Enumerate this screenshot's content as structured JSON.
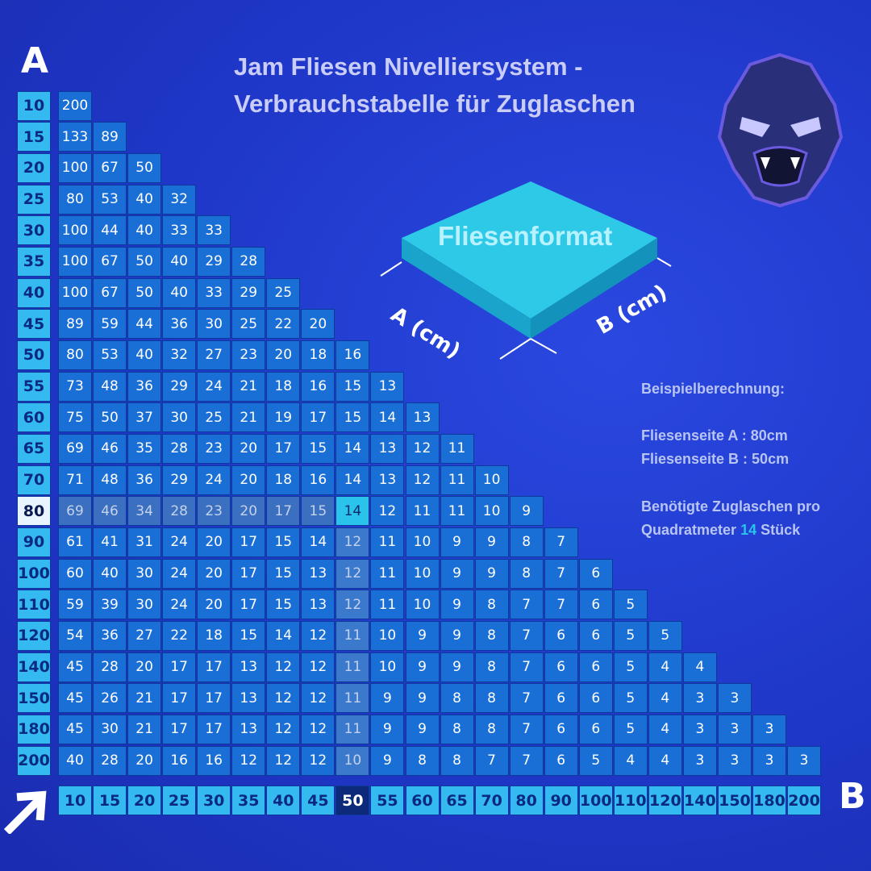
{
  "title": {
    "line1": "Jam Fliesen Nivelliersystem -",
    "line2": "Verbrauchstabelle für Zuglaschen"
  },
  "axis": {
    "a_label": "A",
    "b_label": "B"
  },
  "diagram": {
    "label": "Fliesenformat",
    "side_a": "A (cm)",
    "side_b": "B (cm)"
  },
  "example": {
    "heading": "Beispielberechnung:",
    "side_a": "Fliesenseite A : 80cm",
    "side_b": "Fliesenseite B : 50cm",
    "result_prefix": "Benötigte Zuglaschen pro",
    "result_line2_prefix": "Quadratmeter",
    "result_value": "14",
    "result_suffix": "Stück"
  },
  "colors": {
    "background": "#1f37c8",
    "cell": "#1a6fd6",
    "header": "#34b9f0",
    "highlight": "#29c3ec"
  },
  "icons": {
    "logo": "gorilla-head-logo",
    "corner": "arrow-up-right-icon"
  },
  "selected": {
    "a": "80",
    "b": "50"
  },
  "table": {
    "rows_a": [
      "10",
      "15",
      "20",
      "25",
      "30",
      "35",
      "40",
      "45",
      "50",
      "55",
      "60",
      "65",
      "70",
      "80",
      "90",
      "100",
      "110",
      "120",
      "140",
      "150",
      "180",
      "200"
    ],
    "cols_b": [
      "10",
      "15",
      "20",
      "25",
      "30",
      "35",
      "40",
      "45",
      "50",
      "55",
      "60",
      "65",
      "70",
      "80",
      "90",
      "100",
      "110",
      "120",
      "140",
      "150",
      "180",
      "200"
    ],
    "values": [
      [
        "200"
      ],
      [
        "133",
        "89"
      ],
      [
        "100",
        "67",
        "50"
      ],
      [
        "80",
        "53",
        "40",
        "32"
      ],
      [
        "100",
        "44",
        "40",
        "33",
        "33"
      ],
      [
        "100",
        "67",
        "50",
        "40",
        "29",
        "28"
      ],
      [
        "100",
        "67",
        "50",
        "40",
        "33",
        "29",
        "25"
      ],
      [
        "89",
        "59",
        "44",
        "36",
        "30",
        "25",
        "22",
        "20"
      ],
      [
        "80",
        "53",
        "40",
        "32",
        "27",
        "23",
        "20",
        "18",
        "16"
      ],
      [
        "73",
        "48",
        "36",
        "29",
        "24",
        "21",
        "18",
        "16",
        "15",
        "13"
      ],
      [
        "75",
        "50",
        "37",
        "30",
        "25",
        "21",
        "19",
        "17",
        "15",
        "14",
        "13"
      ],
      [
        "69",
        "46",
        "35",
        "28",
        "23",
        "20",
        "17",
        "15",
        "14",
        "13",
        "12",
        "11"
      ],
      [
        "71",
        "48",
        "36",
        "29",
        "24",
        "20",
        "18",
        "16",
        "14",
        "13",
        "12",
        "11",
        "10"
      ],
      [
        "69",
        "46",
        "34",
        "28",
        "23",
        "20",
        "17",
        "15",
        "14",
        "12",
        "11",
        "11",
        "10",
        "9"
      ],
      [
        "61",
        "41",
        "31",
        "24",
        "20",
        "17",
        "15",
        "14",
        "12",
        "11",
        "10",
        "9",
        "9",
        "8",
        "7"
      ],
      [
        "60",
        "40",
        "30",
        "24",
        "20",
        "17",
        "15",
        "13",
        "12",
        "11",
        "10",
        "9",
        "9",
        "8",
        "7",
        "6"
      ],
      [
        "59",
        "39",
        "30",
        "24",
        "20",
        "17",
        "15",
        "13",
        "12",
        "11",
        "10",
        "9",
        "8",
        "7",
        "7",
        "6",
        "5"
      ],
      [
        "54",
        "36",
        "27",
        "22",
        "18",
        "15",
        "14",
        "12",
        "11",
        "10",
        "9",
        "9",
        "8",
        "7",
        "6",
        "6",
        "5",
        "5"
      ],
      [
        "45",
        "28",
        "20",
        "17",
        "17",
        "13",
        "12",
        "12",
        "11",
        "10",
        "9",
        "9",
        "8",
        "7",
        "6",
        "6",
        "5",
        "4",
        "4"
      ],
      [
        "45",
        "26",
        "21",
        "17",
        "17",
        "13",
        "12",
        "12",
        "11",
        "9",
        "9",
        "8",
        "8",
        "7",
        "6",
        "6",
        "5",
        "4",
        "3",
        "3"
      ],
      [
        "45",
        "30",
        "21",
        "17",
        "17",
        "13",
        "12",
        "12",
        "11",
        "9",
        "9",
        "8",
        "8",
        "7",
        "6",
        "6",
        "5",
        "4",
        "3",
        "3",
        "3"
      ],
      [
        "40",
        "28",
        "20",
        "16",
        "16",
        "12",
        "12",
        "12",
        "10",
        "9",
        "8",
        "8",
        "7",
        "7",
        "6",
        "5",
        "4",
        "4",
        "3",
        "3",
        "3",
        "3"
      ]
    ]
  }
}
